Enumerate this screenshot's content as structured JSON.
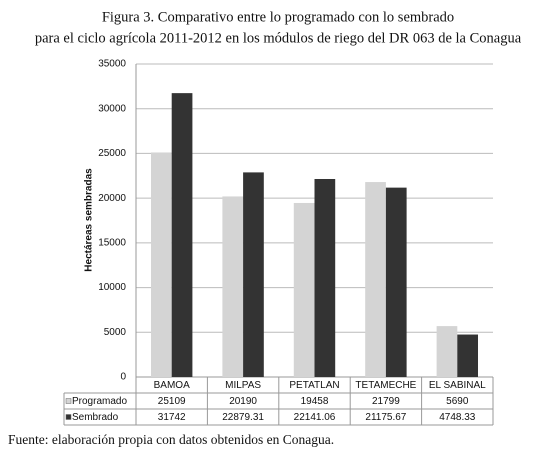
{
  "chart_data": {
    "type": "bar",
    "title": "Figura 3. Comparativo entre lo programado con lo sembrado",
    "subtitle": "para el ciclo agrícola 2011-2012 en los módulos de riego del DR 063 de la Conagua",
    "ylabel": "Hectáreas sembradas",
    "categories": [
      "BAMOA",
      "MILPAS",
      "PETATLAN",
      "TETAMECHE",
      "EL SABINAL"
    ],
    "series": [
      {
        "name": "Programado",
        "color": "#d4d4d4",
        "values": [
          25109,
          20190,
          19458,
          21799,
          5690
        ]
      },
      {
        "name": "Sembrado",
        "color": "#333333",
        "values": [
          31742,
          22879.31,
          22141.06,
          21175.67,
          4748.33
        ]
      }
    ],
    "ylim": [
      0,
      35000
    ],
    "yticks": [
      0,
      5000,
      10000,
      15000,
      20000,
      25000,
      30000,
      35000
    ],
    "grid": true,
    "source": "Fuente: elaboración propia con datos obtenidos en Conagua."
  }
}
